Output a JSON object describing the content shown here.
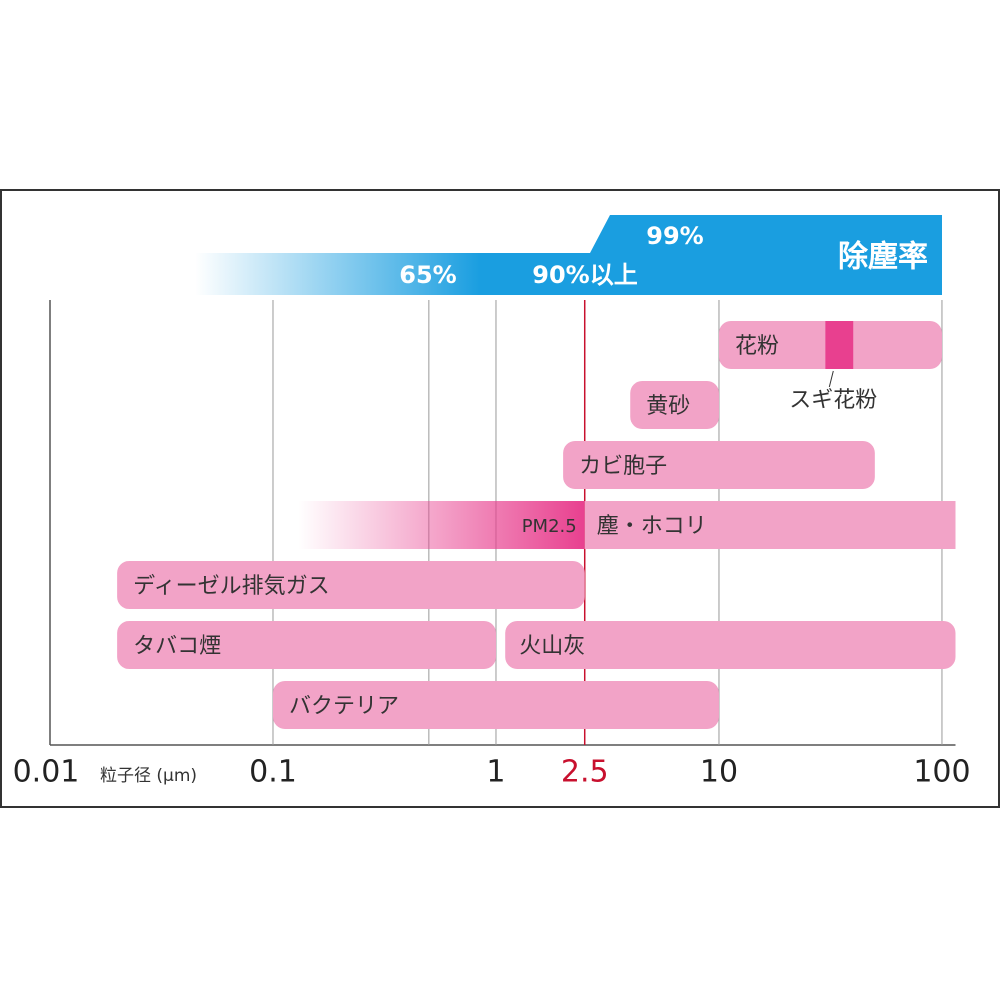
{
  "chart_data": {
    "type": "range",
    "x_label": "粒子径 (μm)",
    "xlim": [
      0.01,
      115
    ],
    "log_x": true,
    "xticks": [
      0.01,
      0.1,
      1,
      2.5,
      10,
      100
    ],
    "highlight_tick_index": 3,
    "highlight_color": "#c8102e",
    "extra_gridlines": [
      0.5
    ],
    "bar_color": "#f2a3c7",
    "accent_color": "#e8408f",
    "rows": [
      {
        "label": "花粉",
        "start": 10,
        "end": 100,
        "sub": {
          "label": "スギ花粉",
          "start": 30,
          "end": 40
        }
      },
      {
        "label": "黄砂",
        "start": 4,
        "end": 10
      },
      {
        "label": "カビ胞子",
        "start": 2,
        "end": 50
      },
      {
        "label": "塵・ホコリ",
        "start": 2.5,
        "end": 115,
        "lead": {
          "label": "PM2.5",
          "start": 0.13,
          "end": 2.5
        }
      },
      {
        "label": "ディーゼル排気ガス",
        "start": 0.02,
        "end": 2.5
      },
      {
        "label": "タバコ煙",
        "start": 0.02,
        "end": 1,
        "also": {
          "label": "火山灰",
          "start": 1.1,
          "end": 115
        }
      },
      {
        "label": "バクテリア",
        "start": 0.1,
        "end": 10
      }
    ],
    "efficiency": {
      "title": "除塵率",
      "color": "#1a9ee0",
      "levels": [
        "65%",
        "90%以上",
        "99%"
      ]
    }
  }
}
